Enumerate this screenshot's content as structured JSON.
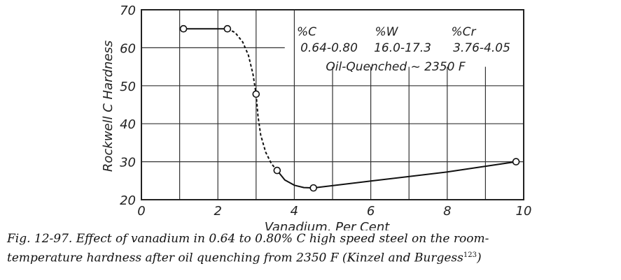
{
  "chart_data": {
    "type": "line",
    "xlabel": "Vanadium, Per Cent",
    "ylabel": "Rockwell C Hardness",
    "xlim": [
      0,
      10
    ],
    "ylim": [
      20,
      70
    ],
    "x_ticks": [
      "0",
      "2",
      "4",
      "6",
      "8",
      "10"
    ],
    "y_ticks": [
      "20",
      "30",
      "40",
      "50",
      "60",
      "70"
    ],
    "grid": true,
    "points": [
      {
        "x": 1.1,
        "y": 65
      },
      {
        "x": 2.25,
        "y": 65
      },
      {
        "x": 3.0,
        "y": 47.8
      },
      {
        "x": 3.55,
        "y": 27.7
      },
      {
        "x": 4.5,
        "y": 23.1
      },
      {
        "x": 9.8,
        "y": 30
      }
    ],
    "curve_segments": [
      {
        "style": "solid",
        "pts": [
          [
            1.1,
            65
          ],
          [
            2.25,
            65
          ]
        ]
      },
      {
        "style": "dashed",
        "pts": [
          [
            2.25,
            65
          ],
          [
            2.45,
            64
          ],
          [
            2.65,
            61.5
          ],
          [
            2.8,
            58
          ],
          [
            2.92,
            53
          ],
          [
            3.0,
            47.8
          ]
        ]
      },
      {
        "style": "dashed",
        "pts": [
          [
            3.0,
            47.8
          ],
          [
            3.05,
            42
          ],
          [
            3.12,
            37
          ],
          [
            3.25,
            32.5
          ],
          [
            3.4,
            29.5
          ],
          [
            3.55,
            27.7
          ]
        ]
      },
      {
        "style": "solid",
        "pts": [
          [
            3.55,
            27.7
          ],
          [
            3.75,
            25.2
          ],
          [
            4.0,
            23.8
          ],
          [
            4.25,
            23.2
          ],
          [
            4.5,
            23.1
          ],
          [
            6,
            24.9
          ],
          [
            8,
            27.3
          ],
          [
            9.8,
            30
          ]
        ]
      }
    ],
    "annotation": {
      "headers": [
        "%C",
        "%W",
        "%Cr"
      ],
      "values": [
        "0.64-0.80",
        "16.0-17.3",
        "3.76-4.05"
      ],
      "condition": "Oil-Quenched ~ 2350 F"
    }
  },
  "caption": {
    "line1": "Fig. 12-97.  Effect of vanadium in 0.64 to 0.80% C high speed steel on the room-",
    "line2": "temperature hardness after oil quenching from 2350 F (Kinzel and Burgess",
    "ref": "123",
    "end": ")"
  }
}
